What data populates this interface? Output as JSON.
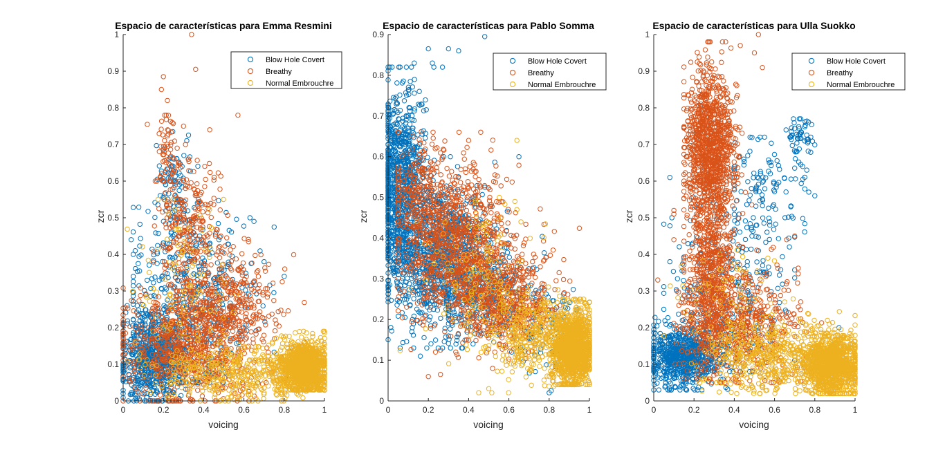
{
  "colors": {
    "blow_hole_covert": "#0072BD",
    "breathy": "#D95319",
    "normal_embrouchre": "#EDB120",
    "axis": "#262626",
    "background": "#ffffff"
  },
  "chart_data": [
    {
      "type": "scatter",
      "title": "Espacio de características para Emma Resmini",
      "xlabel": "voicing",
      "ylabel": "zcr",
      "xlim": [
        0,
        1
      ],
      "ylim": [
        0,
        1
      ],
      "xticks": [
        "0",
        "0.2",
        "0.4",
        "0.6",
        "0.8",
        "1"
      ],
      "yticks": [
        "0",
        "0.1",
        "0.2",
        "0.3",
        "0.4",
        "0.5",
        "0.6",
        "0.7",
        "0.8",
        "0.9",
        "1"
      ],
      "xtick_values": [
        0,
        0.2,
        0.4,
        0.6,
        0.8,
        1
      ],
      "ytick_values": [
        0,
        0.1,
        0.2,
        0.3,
        0.4,
        0.5,
        0.6,
        0.7,
        0.8,
        0.9,
        1
      ],
      "grid": false,
      "legend": "top-right",
      "series": [
        {
          "name": "Blow Hole Covert",
          "color_key": "blow_hole_covert",
          "clusters": [
            {
              "n": 700,
              "cx": 0.15,
              "cy": 0.12,
              "sx": 0.08,
              "sy": 0.06,
              "xr": [
                0,
                0.55
              ],
              "yr": [
                0,
                0.32
              ]
            },
            {
              "n": 450,
              "cx": 0.35,
              "cy": 0.28,
              "sx": 0.15,
              "sy": 0.12,
              "xr": [
                0.05,
                0.75
              ],
              "yr": [
                0.05,
                0.55
              ]
            },
            {
              "n": 90,
              "cx": 0.25,
              "cy": 0.58,
              "sx": 0.05,
              "sy": 0.08,
              "xr": [
                0.15,
                0.38
              ],
              "yr": [
                0.45,
                0.76
              ]
            }
          ],
          "points": [
            [
              0.04,
              0.44
            ],
            [
              0.06,
              0.41
            ],
            [
              0.63,
              0.5
            ],
            [
              0.65,
              0.49
            ],
            [
              0.7,
              0.38
            ],
            [
              0.8,
              0.34
            ],
            [
              0.07,
              0.26
            ],
            [
              0.02,
              0.26
            ]
          ]
        },
        {
          "name": "Breathy",
          "color_key": "breathy",
          "clusters": [
            {
              "n": 700,
              "cx": 0.3,
              "cy": 0.15,
              "sx": 0.15,
              "sy": 0.08,
              "xr": [
                0,
                0.9
              ],
              "yr": [
                0,
                0.4
              ]
            },
            {
              "n": 350,
              "cx": 0.55,
              "cy": 0.25,
              "sx": 0.12,
              "sy": 0.08,
              "xr": [
                0.2,
                0.9
              ],
              "yr": [
                0.05,
                0.45
              ]
            },
            {
              "n": 260,
              "cx": 0.33,
              "cy": 0.47,
              "sx": 0.08,
              "sy": 0.09,
              "xr": [
                0.15,
                0.6
              ],
              "yr": [
                0.3,
                0.66
              ]
            },
            {
              "n": 60,
              "cx": 0.22,
              "cy": 0.68,
              "sx": 0.03,
              "sy": 0.06,
              "xr": [
                0.13,
                0.35
              ],
              "yr": [
                0.6,
                0.78
              ]
            }
          ],
          "points": [
            [
              0.34,
              1.0
            ],
            [
              0.36,
              0.905
            ],
            [
              0.2,
              0.885
            ],
            [
              0.19,
              0.85
            ],
            [
              0.22,
              0.82
            ],
            [
              0.57,
              0.78
            ],
            [
              0.12,
              0.755
            ],
            [
              0.43,
              0.74
            ],
            [
              0.3,
              0.75
            ],
            [
              0.31,
              0.7
            ]
          ]
        },
        {
          "name": "Normal Embrouchre",
          "color_key": "normal_embrouchre",
          "clusters": [
            {
              "n": 1100,
              "cx": 0.9,
              "cy": 0.09,
              "sx": 0.06,
              "sy": 0.035,
              "xr": [
                0.7,
                1.0
              ],
              "yr": [
                0.03,
                0.19
              ]
            },
            {
              "n": 450,
              "cx": 0.6,
              "cy": 0.08,
              "sx": 0.2,
              "sy": 0.04,
              "xr": [
                0,
                1.0
              ],
              "yr": [
                0,
                0.2
              ]
            },
            {
              "n": 120,
              "cx": 0.3,
              "cy": 0.3,
              "sx": 0.12,
              "sy": 0.12,
              "xr": [
                0,
                0.6
              ],
              "yr": [
                0.05,
                0.55
              ]
            }
          ],
          "points": []
        }
      ]
    },
    {
      "type": "scatter",
      "title": "Espacio de características para Pablo Somma",
      "xlabel": "voicing",
      "ylabel": "zcr",
      "xlim": [
        0,
        1
      ],
      "ylim": [
        0,
        0.9
      ],
      "xticks": [
        "0",
        "0.2",
        "0.4",
        "0.6",
        "0.8",
        "1"
      ],
      "yticks": [
        "0",
        "0.1",
        "0.2",
        "0.3",
        "0.4",
        "0.5",
        "0.6",
        "0.7",
        "0.8",
        "0.9"
      ],
      "xtick_values": [
        0,
        0.2,
        0.4,
        0.6,
        0.8,
        1
      ],
      "ytick_values": [
        0,
        0.1,
        0.2,
        0.3,
        0.4,
        0.5,
        0.6,
        0.7,
        0.8,
        0.9
      ],
      "grid": false,
      "legend": "top-right",
      "series": [
        {
          "name": "Blow Hole Covert",
          "color_key": "blow_hole_covert",
          "clusters": [
            {
              "n": 900,
              "cx": 0.06,
              "cy": 0.52,
              "sx": 0.06,
              "sy": 0.12,
              "xr": [
                0,
                0.3
              ],
              "yr": [
                0.17,
                0.82
              ]
            },
            {
              "n": 900,
              "cx": 0.27,
              "cy": 0.35,
              "sx": 0.12,
              "sy": 0.09,
              "xr": [
                0,
                0.65
              ],
              "yr": [
                0.13,
                0.6
              ]
            },
            {
              "n": 250,
              "cx": 0.5,
              "cy": 0.27,
              "sx": 0.12,
              "sy": 0.06,
              "xr": [
                0.3,
                0.95
              ],
              "yr": [
                0.12,
                0.45
              ]
            },
            {
              "n": 90,
              "cx": 0.8,
              "cy": 0.18,
              "sx": 0.08,
              "sy": 0.06,
              "xr": [
                0.55,
                1.0
              ],
              "yr": [
                0.02,
                0.33
              ]
            }
          ],
          "points": [
            [
              0.48,
              0.895
            ],
            [
              0.2,
              0.865
            ],
            [
              0.3,
              0.865
            ],
            [
              0.35,
              0.86
            ],
            [
              0.22,
              0.83
            ],
            [
              0.13,
              0.83
            ],
            [
              0.27,
              0.82
            ],
            [
              0.02,
              0.82
            ],
            [
              0.8,
              0.02
            ],
            [
              0.81,
              0.025
            ],
            [
              0.16,
              0.11
            ],
            [
              0.12,
              0.18
            ]
          ]
        },
        {
          "name": "Breathy",
          "color_key": "breathy",
          "clusters": [
            {
              "n": 900,
              "cx": 0.35,
              "cy": 0.38,
              "sx": 0.13,
              "sy": 0.09,
              "xr": [
                0.05,
                0.85
              ],
              "yr": [
                0.12,
                0.66
              ]
            },
            {
              "n": 500,
              "cx": 0.6,
              "cy": 0.24,
              "sx": 0.12,
              "sy": 0.06,
              "xr": [
                0.25,
                0.95
              ],
              "yr": [
                0.08,
                0.45
              ]
            },
            {
              "n": 200,
              "cx": 0.16,
              "cy": 0.5,
              "sx": 0.07,
              "sy": 0.07,
              "xr": [
                0.05,
                0.32
              ],
              "yr": [
                0.3,
                0.68
              ]
            }
          ],
          "points": [
            [
              0.2,
              0.06
            ],
            [
              0.26,
              0.065
            ],
            [
              0.46,
              0.66
            ],
            [
              0.4,
              0.64
            ]
          ]
        },
        {
          "name": "Normal Embrouchre",
          "color_key": "normal_embrouchre",
          "clusters": [
            {
              "n": 1300,
              "cx": 0.92,
              "cy": 0.13,
              "sx": 0.05,
              "sy": 0.045,
              "xr": [
                0.7,
                1.0
              ],
              "yr": [
                0.04,
                0.25
              ]
            },
            {
              "n": 350,
              "cx": 0.72,
              "cy": 0.16,
              "sx": 0.1,
              "sy": 0.05,
              "xr": [
                0.4,
                1.0
              ],
              "yr": [
                0.03,
                0.28
              ]
            },
            {
              "n": 150,
              "cx": 0.45,
              "cy": 0.3,
              "sx": 0.13,
              "sy": 0.09,
              "xr": [
                0.05,
                0.85
              ],
              "yr": [
                0.02,
                0.5
              ]
            }
          ],
          "points": [
            [
              0.64,
              0.64
            ],
            [
              0.63,
              0.49
            ],
            [
              0.64,
              0.47
            ],
            [
              0.66,
              0.44
            ],
            [
              0.45,
              0.02
            ],
            [
              0.5,
              0.03
            ]
          ]
        }
      ]
    },
    {
      "type": "scatter",
      "title": "Espacio de características para Ulla Suokko",
      "xlabel": "voicing",
      "ylabel": "zcr",
      "xlim": [
        0,
        1
      ],
      "ylim": [
        0,
        1
      ],
      "xticks": [
        "0",
        "0.2",
        "0.4",
        "0.6",
        "0.8",
        "1"
      ],
      "yticks": [
        "0",
        "0.1",
        "0.2",
        "0.3",
        "0.4",
        "0.5",
        "0.6",
        "0.7",
        "0.8",
        "0.9",
        "1"
      ],
      "xtick_values": [
        0,
        0.2,
        0.4,
        0.6,
        0.8,
        1
      ],
      "ytick_values": [
        0,
        0.1,
        0.2,
        0.3,
        0.4,
        0.5,
        0.6,
        0.7,
        0.8,
        0.9,
        1
      ],
      "grid": false,
      "legend": "top-right",
      "series": [
        {
          "name": "Blow Hole Covert",
          "color_key": "blow_hole_covert",
          "clusters": [
            {
              "n": 700,
              "cx": 0.15,
              "cy": 0.12,
              "sx": 0.09,
              "sy": 0.04,
              "xr": [
                0,
                0.5
              ],
              "yr": [
                0.03,
                0.3
              ]
            },
            {
              "n": 250,
              "cx": 0.35,
              "cy": 0.3,
              "sx": 0.15,
              "sy": 0.12,
              "xr": [
                0.05,
                0.7
              ],
              "yr": [
                0.08,
                0.66
              ]
            },
            {
              "n": 120,
              "cx": 0.55,
              "cy": 0.55,
              "sx": 0.1,
              "sy": 0.1,
              "xr": [
                0.4,
                0.75
              ],
              "yr": [
                0.35,
                0.72
              ]
            },
            {
              "n": 50,
              "cx": 0.73,
              "cy": 0.72,
              "sx": 0.03,
              "sy": 0.03,
              "xr": [
                0.65,
                0.8
              ],
              "yr": [
                0.64,
                0.77
              ]
            }
          ],
          "points": [
            [
              0.08,
              0.61
            ],
            [
              0.78,
              0.72
            ],
            [
              0.74,
              0.64
            ],
            [
              0.76,
              0.63
            ],
            [
              0.8,
              0.56
            ],
            [
              0.77,
              0.57
            ],
            [
              0.09,
              0.5
            ],
            [
              0.08,
              0.38
            ],
            [
              0.92,
              0.2
            ],
            [
              0.0,
              0.03
            ]
          ]
        },
        {
          "name": "Breathy",
          "color_key": "breathy",
          "clusters": [
            {
              "n": 1000,
              "cx": 0.28,
              "cy": 0.7,
              "sx": 0.06,
              "sy": 0.1,
              "xr": [
                0.15,
                0.5
              ],
              "yr": [
                0.45,
                0.98
              ]
            },
            {
              "n": 700,
              "cx": 0.28,
              "cy": 0.35,
              "sx": 0.06,
              "sy": 0.13,
              "xr": [
                0.15,
                0.5
              ],
              "yr": [
                0.06,
                0.6
              ]
            },
            {
              "n": 450,
              "cx": 0.45,
              "cy": 0.2,
              "sx": 0.14,
              "sy": 0.08,
              "xr": [
                0.05,
                0.9
              ],
              "yr": [
                0.05,
                0.5
              ]
            }
          ],
          "points": [
            [
              0.52,
              1.0
            ],
            [
              0.5,
              0.95
            ],
            [
              0.54,
              0.91
            ],
            [
              0.43,
              0.97
            ],
            [
              0.02,
              0.33
            ],
            [
              0.1,
              0.52
            ],
            [
              0.1,
              0.51
            ],
            [
              0.66,
              0.44
            ],
            [
              0.7,
              0.45
            ],
            [
              0.1,
              0.44
            ]
          ]
        },
        {
          "name": "Normal Embrouchre",
          "color_key": "normal_embrouchre",
          "clusters": [
            {
              "n": 1200,
              "cx": 0.88,
              "cy": 0.1,
              "sx": 0.07,
              "sy": 0.04,
              "xr": [
                0.6,
                1.0
              ],
              "yr": [
                0.02,
                0.22
              ]
            },
            {
              "n": 450,
              "cx": 0.58,
              "cy": 0.12,
              "sx": 0.15,
              "sy": 0.05,
              "xr": [
                0.2,
                1.0
              ],
              "yr": [
                0.02,
                0.28
              ]
            },
            {
              "n": 100,
              "cx": 0.35,
              "cy": 0.25,
              "sx": 0.12,
              "sy": 0.1,
              "xr": [
                0,
                0.7
              ],
              "yr": [
                0.05,
                0.5
              ]
            }
          ],
          "points": []
        }
      ]
    }
  ]
}
